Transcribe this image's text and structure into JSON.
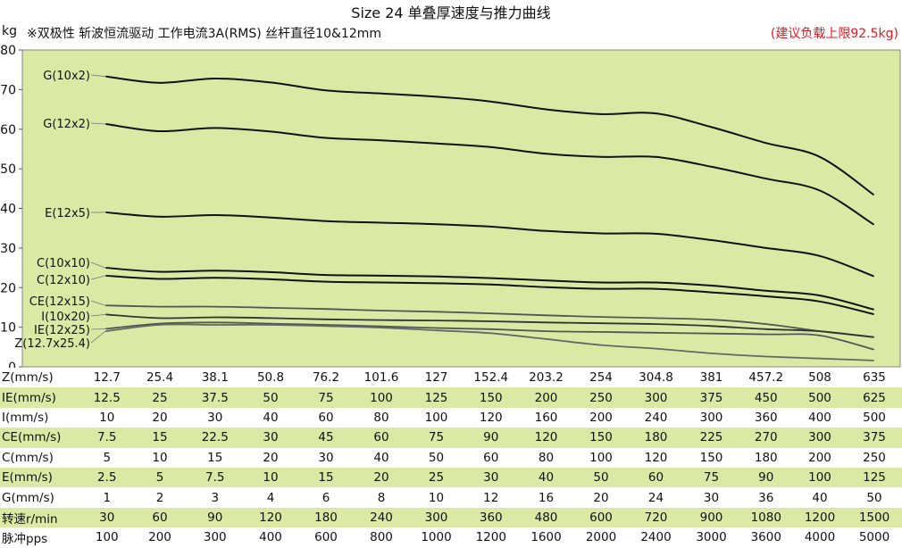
{
  "header": {
    "title": "Size 24 单叠厚速度与推力曲线",
    "unit": "kg",
    "subtitle": "※双极性 斩波恒流驱动 工作电流3A(RMS) 丝杆直径10&12mm",
    "note": "(建议负载上限92.5kg)"
  },
  "chart_data": {
    "type": "line",
    "ylabel": "kg",
    "ylim": [
      0,
      80
    ],
    "yticks": [
      0,
      10,
      20,
      30,
      40,
      50,
      60,
      70,
      80
    ],
    "grid": false,
    "plot_background": "#dbe9a4",
    "line_color": "#111111",
    "x_categories": [
      "12.7",
      "25.4",
      "38.1",
      "50.8",
      "76.2",
      "101.6",
      "127",
      "152.4",
      "203.2",
      "254",
      "304.8",
      "381",
      "457.2",
      "508",
      "635"
    ],
    "series": [
      {
        "name": "G(10x2)",
        "values": [
          73.3,
          71.7,
          72.8,
          71.8,
          69.8,
          69.0,
          68.2,
          67.0,
          65.0,
          63.8,
          64.0,
          60.5,
          56.5,
          53.0,
          43.5
        ],
        "color": "#111111"
      },
      {
        "name": "G(12x2)",
        "values": [
          61.3,
          59.5,
          60.3,
          59.4,
          57.8,
          57.2,
          56.4,
          55.5,
          53.8,
          53.0,
          53.0,
          50.5,
          47.5,
          44.5,
          36.0
        ],
        "color": "#111111"
      },
      {
        "name": "E(12x5)",
        "values": [
          39.0,
          37.9,
          38.3,
          37.7,
          36.8,
          36.4,
          36.0,
          35.4,
          34.3,
          33.7,
          33.6,
          32.0,
          30.0,
          28.0,
          22.9
        ],
        "color": "#111111"
      },
      {
        "name": "C(10x10)",
        "values": [
          25.0,
          24.0,
          24.3,
          23.9,
          23.2,
          23.0,
          22.8,
          22.4,
          21.8,
          21.3,
          21.3,
          20.5,
          19.2,
          18.0,
          14.5
        ],
        "color": "#111111"
      },
      {
        "name": "C(12x10)",
        "values": [
          23.0,
          22.2,
          22.5,
          22.1,
          21.5,
          21.3,
          21.1,
          20.8,
          20.1,
          19.7,
          19.7,
          18.8,
          17.8,
          16.5,
          13.3
        ],
        "color": "#111111"
      },
      {
        "name": "CE(12x15)",
        "values": [
          15.5,
          15.2,
          15.2,
          14.9,
          14.6,
          14.2,
          13.9,
          13.5,
          13.0,
          12.6,
          12.3,
          11.9,
          10.8,
          9.0,
          7.5
        ],
        "color": "#555555"
      },
      {
        "name": "I(10x20)",
        "values": [
          13.2,
          12.3,
          12.5,
          12.3,
          12.0,
          11.8,
          11.7,
          11.5,
          11.2,
          11.0,
          10.8,
          10.3,
          9.5,
          9.0,
          7.5
        ],
        "color": "#333333"
      },
      {
        "name": "IE(12x25)",
        "values": [
          9.6,
          10.9,
          11.2,
          10.9,
          10.6,
          10.2,
          9.8,
          9.5,
          9.0,
          8.8,
          8.6,
          8.4,
          8.2,
          7.9,
          4.4
        ],
        "color": "#555555"
      },
      {
        "name": "Z(12.7x25.4)",
        "values": [
          9.0,
          10.6,
          10.6,
          10.6,
          10.3,
          9.9,
          9.2,
          8.5,
          7.0,
          5.5,
          4.6,
          3.4,
          2.6,
          2.1,
          1.6
        ],
        "color": "#666666"
      }
    ]
  },
  "table": {
    "rows": [
      {
        "label": "Z(mm/s)",
        "shaded": false,
        "values": [
          "12.7",
          "25.4",
          "38.1",
          "50.8",
          "76.2",
          "101.6",
          "127",
          "152.4",
          "203.2",
          "254",
          "304.8",
          "381",
          "457.2",
          "508",
          "635"
        ]
      },
      {
        "label": "IE(mm/s)",
        "shaded": true,
        "values": [
          "12.5",
          "25",
          "37.5",
          "50",
          "75",
          "100",
          "125",
          "150",
          "200",
          "250",
          "300",
          "375",
          "450",
          "500",
          "625"
        ]
      },
      {
        "label": "I(mm/s)",
        "shaded": false,
        "values": [
          "10",
          "20",
          "30",
          "40",
          "60",
          "80",
          "100",
          "120",
          "160",
          "200",
          "240",
          "300",
          "360",
          "400",
          "500"
        ]
      },
      {
        "label": "CE(mm/s)",
        "shaded": true,
        "values": [
          "7.5",
          "15",
          "22.5",
          "30",
          "45",
          "60",
          "75",
          "90",
          "120",
          "150",
          "180",
          "225",
          "270",
          "300",
          "375"
        ]
      },
      {
        "label": "C(mm/s)",
        "shaded": false,
        "values": [
          "5",
          "10",
          "15",
          "20",
          "30",
          "40",
          "50",
          "60",
          "80",
          "100",
          "120",
          "150",
          "180",
          "200",
          "250"
        ]
      },
      {
        "label": "E(mm/s)",
        "shaded": true,
        "values": [
          "2.5",
          "5",
          "7.5",
          "10",
          "15",
          "20",
          "25",
          "30",
          "40",
          "50",
          "60",
          "75",
          "90",
          "100",
          "125"
        ]
      },
      {
        "label": "G(mm/s)",
        "shaded": false,
        "values": [
          "1",
          "2",
          "3",
          "4",
          "6",
          "8",
          "10",
          "12",
          "16",
          "20",
          "24",
          "30",
          "36",
          "40",
          "50"
        ]
      },
      {
        "label": "转速r/min",
        "shaded": true,
        "values": [
          "30",
          "60",
          "90",
          "120",
          "180",
          "240",
          "300",
          "360",
          "480",
          "600",
          "720",
          "900",
          "1080",
          "1200",
          "1500"
        ]
      },
      {
        "label": "脉冲pps",
        "shaded": false,
        "values": [
          "100",
          "200",
          "300",
          "400",
          "600",
          "800",
          "1000",
          "1200",
          "1600",
          "2000",
          "2400",
          "3000",
          "3600",
          "4000",
          "5000"
        ]
      }
    ]
  }
}
